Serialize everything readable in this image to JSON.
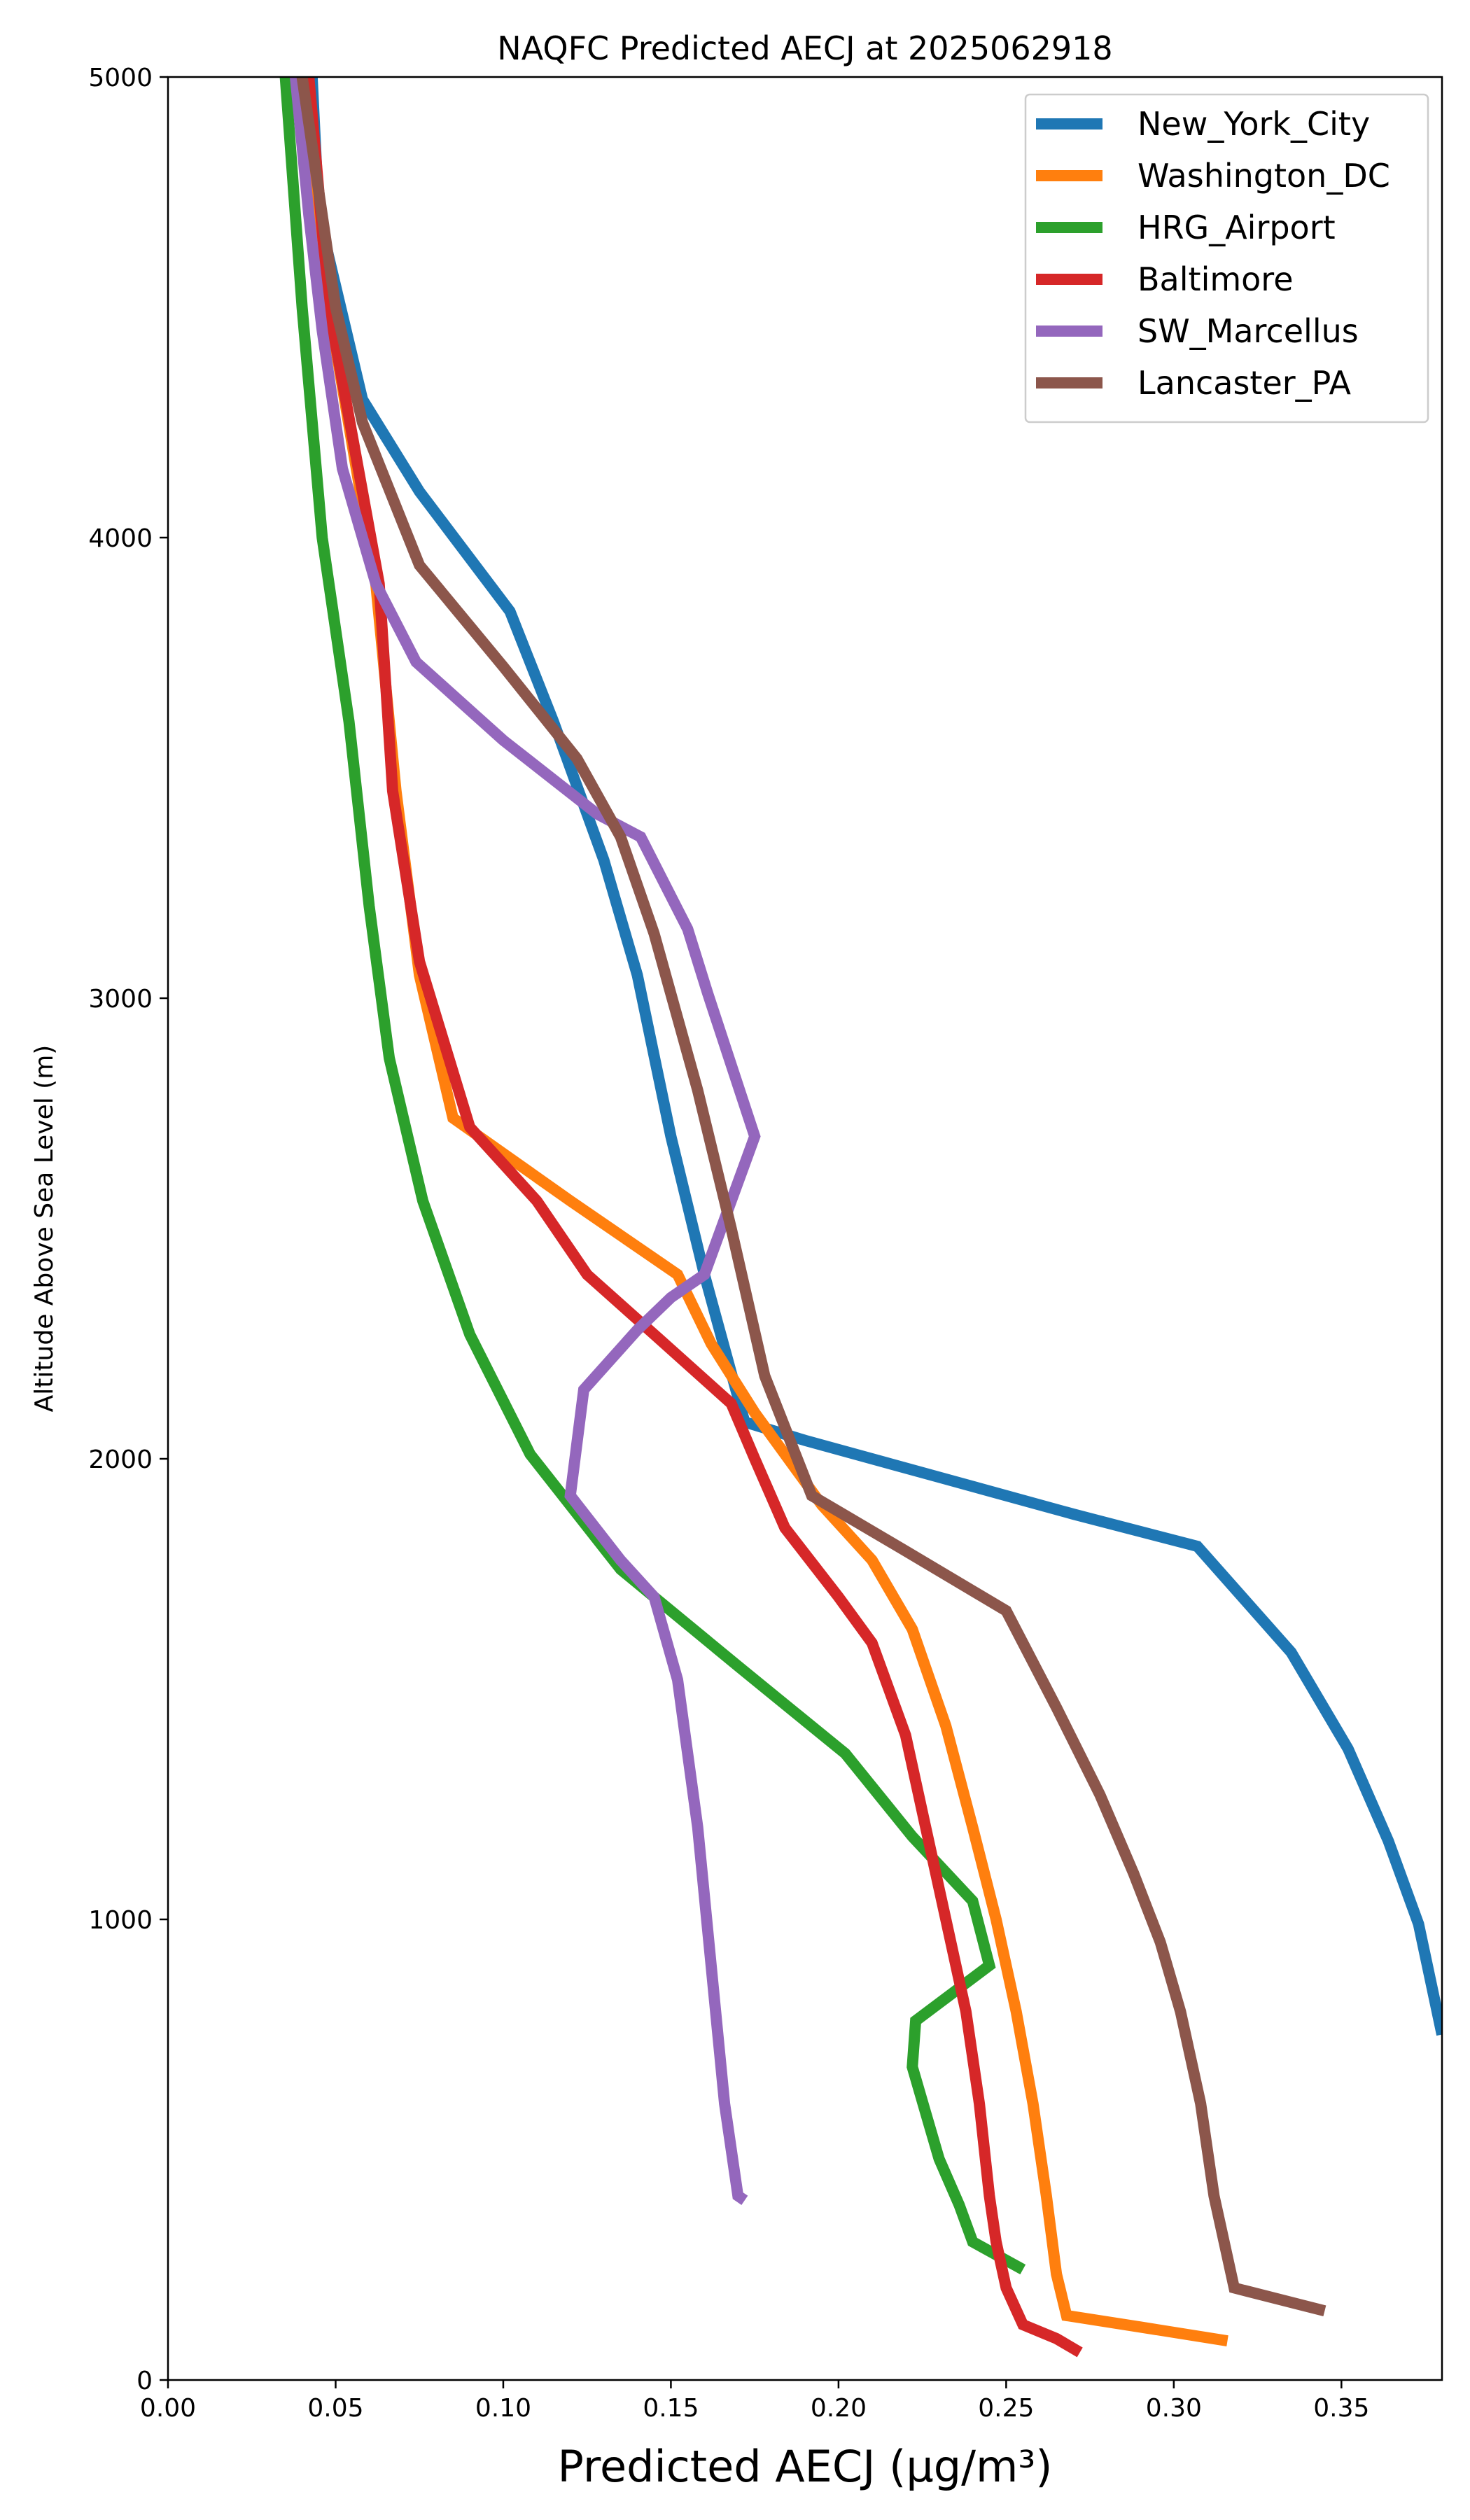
{
  "chart_data": {
    "type": "line",
    "title": "NAQFC Predicted AECJ at 2025062918",
    "xlabel": "Predicted AECJ (μg/m³)",
    "ylabel": "Altitude Above Sea Level (m)",
    "xlim": [
      0.0,
      0.38
    ],
    "ylim": [
      0,
      5000
    ],
    "xticks": [
      "0.00",
      "0.05",
      "0.10",
      "0.15",
      "0.20",
      "0.25",
      "0.30",
      "0.35"
    ],
    "yticks": [
      "0",
      "1000",
      "2000",
      "3000",
      "4000",
      "5000"
    ],
    "grid": false,
    "legend": "top-right",
    "series": [
      {
        "name": "New_York_City",
        "color": "#1f77b4",
        "points": [
          [
            0.043,
            5000
          ],
          [
            0.045,
            4700
          ],
          [
            0.058,
            4300
          ],
          [
            0.075,
            4100
          ],
          [
            0.102,
            3840
          ],
          [
            0.115,
            3600
          ],
          [
            0.13,
            3300
          ],
          [
            0.14,
            3050
          ],
          [
            0.15,
            2700
          ],
          [
            0.16,
            2400
          ],
          [
            0.172,
            2080
          ],
          [
            0.19,
            2040
          ],
          [
            0.23,
            1960
          ],
          [
            0.27,
            1880
          ],
          [
            0.307,
            1810
          ],
          [
            0.335,
            1580
          ],
          [
            0.352,
            1370
          ],
          [
            0.364,
            1170
          ],
          [
            0.373,
            990
          ],
          [
            0.38,
            750
          ]
        ]
      },
      {
        "name": "Washington_DC",
        "color": "#ff7f0e",
        "points": [
          [
            0.04,
            5000
          ],
          [
            0.048,
            4500
          ],
          [
            0.062,
            3900
          ],
          [
            0.068,
            3450
          ],
          [
            0.075,
            3050
          ],
          [
            0.085,
            2740
          ],
          [
            0.12,
            2560
          ],
          [
            0.152,
            2400
          ],
          [
            0.162,
            2250
          ],
          [
            0.175,
            2100
          ],
          [
            0.195,
            1900
          ],
          [
            0.21,
            1780
          ],
          [
            0.222,
            1630
          ],
          [
            0.232,
            1420
          ],
          [
            0.24,
            1200
          ],
          [
            0.247,
            1000
          ],
          [
            0.253,
            800
          ],
          [
            0.258,
            600
          ],
          [
            0.262,
            400
          ],
          [
            0.265,
            230
          ],
          [
            0.268,
            140
          ],
          [
            0.29,
            115
          ],
          [
            0.316,
            85
          ]
        ]
      },
      {
        "name": "HRG_Airport",
        "color": "#2ca02c",
        "points": [
          [
            0.035,
            5000
          ],
          [
            0.04,
            4500
          ],
          [
            0.046,
            4000
          ],
          [
            0.054,
            3600
          ],
          [
            0.06,
            3200
          ],
          [
            0.066,
            2870
          ],
          [
            0.076,
            2560
          ],
          [
            0.09,
            2270
          ],
          [
            0.108,
            2010
          ],
          [
            0.135,
            1760
          ],
          [
            0.17,
            1550
          ],
          [
            0.202,
            1360
          ],
          [
            0.222,
            1180
          ],
          [
            0.24,
            1040
          ],
          [
            0.245,
            900
          ],
          [
            0.223,
            780
          ],
          [
            0.222,
            680
          ],
          [
            0.226,
            580
          ],
          [
            0.23,
            480
          ],
          [
            0.236,
            380
          ],
          [
            0.24,
            300
          ],
          [
            0.255,
            240
          ]
        ]
      },
      {
        "name": "Baltimore",
        "color": "#d62728",
        "points": [
          [
            0.042,
            5000
          ],
          [
            0.048,
            4500
          ],
          [
            0.058,
            4100
          ],
          [
            0.063,
            3900
          ],
          [
            0.067,
            3450
          ],
          [
            0.075,
            3080
          ],
          [
            0.09,
            2720
          ],
          [
            0.11,
            2560
          ],
          [
            0.125,
            2400
          ],
          [
            0.145,
            2270
          ],
          [
            0.168,
            2120
          ],
          [
            0.175,
            2000
          ],
          [
            0.184,
            1850
          ],
          [
            0.2,
            1700
          ],
          [
            0.21,
            1600
          ],
          [
            0.22,
            1400
          ],
          [
            0.226,
            1200
          ],
          [
            0.232,
            1000
          ],
          [
            0.238,
            800
          ],
          [
            0.242,
            600
          ],
          [
            0.245,
            400
          ],
          [
            0.247,
            300
          ],
          [
            0.25,
            200
          ],
          [
            0.255,
            120
          ],
          [
            0.265,
            90
          ],
          [
            0.272,
            60
          ]
        ]
      },
      {
        "name": "SW_Marcellus",
        "color": "#9467bd",
        "points": [
          [
            0.038,
            5000
          ],
          [
            0.042,
            4700
          ],
          [
            0.046,
            4450
          ],
          [
            0.052,
            4150
          ],
          [
            0.062,
            3900
          ],
          [
            0.074,
            3730
          ],
          [
            0.1,
            3560
          ],
          [
            0.128,
            3400
          ],
          [
            0.141,
            3350
          ],
          [
            0.155,
            3150
          ],
          [
            0.161,
            3010
          ],
          [
            0.175,
            2700
          ],
          [
            0.16,
            2400
          ],
          [
            0.15,
            2350
          ],
          [
            0.14,
            2280
          ],
          [
            0.124,
            2150
          ],
          [
            0.12,
            1920
          ],
          [
            0.135,
            1780
          ],
          [
            0.145,
            1700
          ],
          [
            0.152,
            1520
          ],
          [
            0.158,
            1200
          ],
          [
            0.162,
            900
          ],
          [
            0.166,
            600
          ],
          [
            0.17,
            400
          ],
          [
            0.172,
            390
          ]
        ]
      },
      {
        "name": "Lancaster_PA",
        "color": "#8c564b",
        "points": [
          [
            0.04,
            5000
          ],
          [
            0.044,
            4800
          ],
          [
            0.05,
            4500
          ],
          [
            0.058,
            4250
          ],
          [
            0.075,
            3940
          ],
          [
            0.1,
            3720
          ],
          [
            0.122,
            3520
          ],
          [
            0.135,
            3350
          ],
          [
            0.145,
            3140
          ],
          [
            0.158,
            2800
          ],
          [
            0.168,
            2500
          ],
          [
            0.178,
            2180
          ],
          [
            0.192,
            1920
          ],
          [
            0.22,
            1800
          ],
          [
            0.25,
            1670
          ],
          [
            0.265,
            1460
          ],
          [
            0.278,
            1270
          ],
          [
            0.288,
            1100
          ],
          [
            0.296,
            950
          ],
          [
            0.302,
            800
          ],
          [
            0.308,
            600
          ],
          [
            0.312,
            400
          ],
          [
            0.315,
            300
          ],
          [
            0.318,
            200
          ],
          [
            0.345,
            150
          ]
        ]
      }
    ]
  }
}
